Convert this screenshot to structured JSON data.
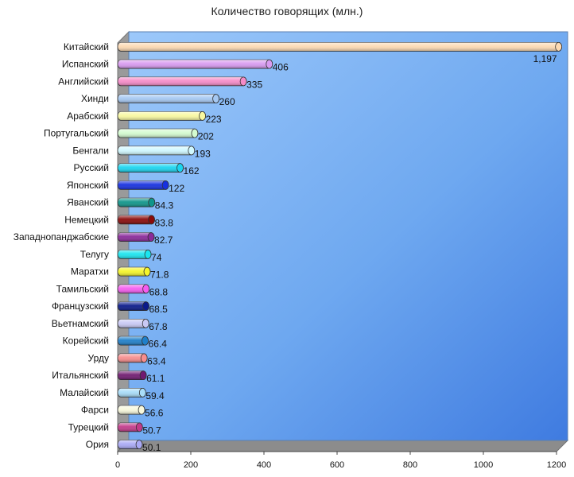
{
  "chart_data": {
    "type": "bar",
    "orientation": "horizontal",
    "title": "Количество говорящих (млн.)",
    "xlabel": "",
    "ylabel": "",
    "xlim": [
      0,
      1200
    ],
    "xticks": [
      "0",
      "200",
      "400",
      "600",
      "800",
      "1000",
      "1200"
    ],
    "grid": false,
    "legend": "none",
    "background_color": "#6aaaf0",
    "categories": [
      "Китайский",
      "Испанский",
      "Английский",
      "Хинди",
      "Арабский",
      "Португальский",
      "Бенгали",
      "Русский",
      "Японский",
      "Яванский",
      "Немецкий",
      "Западнопанджабские",
      "Телугу",
      "Маратхи",
      "Тамильский",
      "Французский",
      "Вьетнамский",
      "Корейский",
      "Урду",
      "Итальянский",
      "Малайский",
      "Фарси",
      "Турецкий",
      "Ория"
    ],
    "values": [
      1197,
      406,
      335,
      260,
      223,
      202,
      193,
      162,
      122,
      84.3,
      83.8,
      82.7,
      74,
      71.8,
      68.8,
      68.5,
      67.8,
      66.4,
      63.4,
      61.1,
      59.4,
      56.6,
      50.7,
      50.1
    ],
    "value_labels": [
      "1,197",
      "406",
      "335",
      "260",
      "223",
      "202",
      "193",
      "162",
      "122",
      "84.3",
      "83.8",
      "82.7",
      "74",
      "71.8",
      "68.8",
      "68.5",
      "67.8",
      "66.4",
      "63.4",
      "61.1",
      "59.4",
      "56.6",
      "50.7",
      "50.1"
    ],
    "colors": [
      "#fcd9b2",
      "#d99bf0",
      "#f58bc8",
      "#a5c8f2",
      "#f8f8a0",
      "#d4fbd0",
      "#d0f8ff",
      "#1ad5f0",
      "#1630e0",
      "#10958a",
      "#8a0a0a",
      "#8a2a9a",
      "#1ae5ef",
      "#f5f52a",
      "#f55cf0",
      "#0a1a8a",
      "#c9c9f5",
      "#1f7fc9",
      "#f78d8d",
      "#701a70",
      "#a8dcf8",
      "#f8f8dc",
      "#c23a8a",
      "#a9a9f5"
    ]
  }
}
